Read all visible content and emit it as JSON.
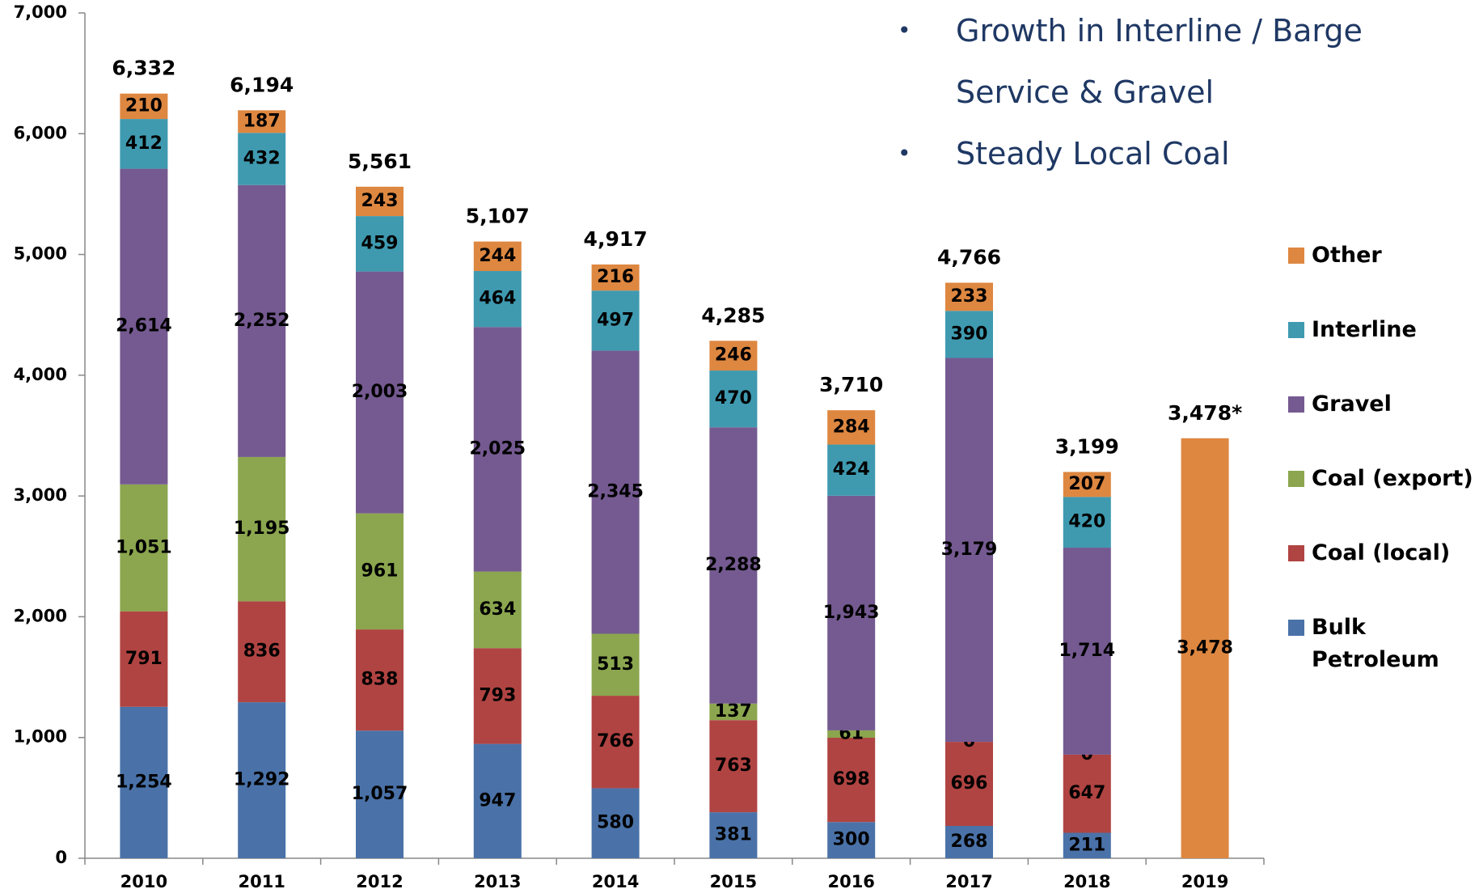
{
  "chart_data": {
    "type": "stacked_bar",
    "bullets": [
      "Growth in Interline / Barge Service & Gravel",
      "Steady Local Coal"
    ],
    "categories": [
      "2010",
      "2011",
      "2012",
      "2013",
      "2014",
      "2015",
      "2016",
      "2017",
      "2018",
      "2019"
    ],
    "series": [
      {
        "name": "Bulk Petroleum",
        "color": "#4a72a8",
        "values": [
          1254,
          1292,
          1057,
          947,
          580,
          381,
          300,
          268,
          211,
          null
        ],
        "value_labels": [
          "1,254",
          "1,292",
          "1,057",
          "947",
          "580",
          "381",
          "300",
          "268",
          "211",
          null
        ]
      },
      {
        "name": "Coal (local)",
        "color": "#b04442",
        "values": [
          791,
          836,
          838,
          793,
          766,
          763,
          698,
          696,
          647,
          null
        ],
        "value_labels": [
          "791",
          "836",
          "838",
          "793",
          "766",
          "763",
          "698",
          "696",
          "647",
          null
        ]
      },
      {
        "name": "Coal (export)",
        "color": "#8ba64e",
        "values": [
          1051,
          1195,
          961,
          634,
          513,
          137,
          61,
          0,
          0,
          null
        ],
        "value_labels": [
          "1,051",
          "1,195",
          "961",
          "634",
          "513",
          "137",
          "61",
          "0",
          "0",
          null
        ]
      },
      {
        "name": "Gravel",
        "color": "#745a90",
        "values": [
          2614,
          2252,
          2003,
          2025,
          2345,
          2288,
          1943,
          3179,
          1714,
          null
        ],
        "value_labels": [
          "2,614",
          "2,252",
          "2,003",
          "2,025",
          "2,345",
          "2,288",
          "1,943",
          "3,179",
          "1,714",
          null
        ]
      },
      {
        "name": "Interline",
        "color": "#3f9ab0",
        "values": [
          412,
          432,
          459,
          464,
          497,
          470,
          424,
          390,
          420,
          null
        ],
        "value_labels": [
          "412",
          "432",
          "459",
          "464",
          "497",
          "470",
          "424",
          "390",
          "420",
          null
        ]
      },
      {
        "name": "Other",
        "color": "#de8740",
        "values": [
          210,
          187,
          243,
          244,
          216,
          246,
          284,
          233,
          207,
          3478
        ],
        "value_labels": [
          "210",
          "187",
          "243",
          "244",
          "216",
          "246",
          "284",
          "233",
          "207",
          "3,478"
        ]
      }
    ],
    "totals": [
      6332,
      6194,
      5561,
      5107,
      4917,
      4285,
      3710,
      4766,
      3199,
      3478
    ],
    "total_labels": [
      "6,332",
      "6,194",
      "5,561",
      "5,107",
      "4,917",
      "4,285",
      "3,710",
      "4,766",
      "3,199",
      "3,478*"
    ],
    "ylim": [
      0,
      7000
    ],
    "yticks": [
      {
        "value": 0,
        "label": "0"
      },
      {
        "value": 1000,
        "label": "1,000"
      },
      {
        "value": 2000,
        "label": "2,000"
      },
      {
        "value": 3000,
        "label": "3,000"
      },
      {
        "value": 4000,
        "label": "4,000"
      },
      {
        "value": 5000,
        "label": "5,000"
      },
      {
        "value": 6000,
        "label": "6,000"
      },
      {
        "value": 7000,
        "label": "7,000"
      }
    ],
    "legend": "right",
    "grid": false
  }
}
